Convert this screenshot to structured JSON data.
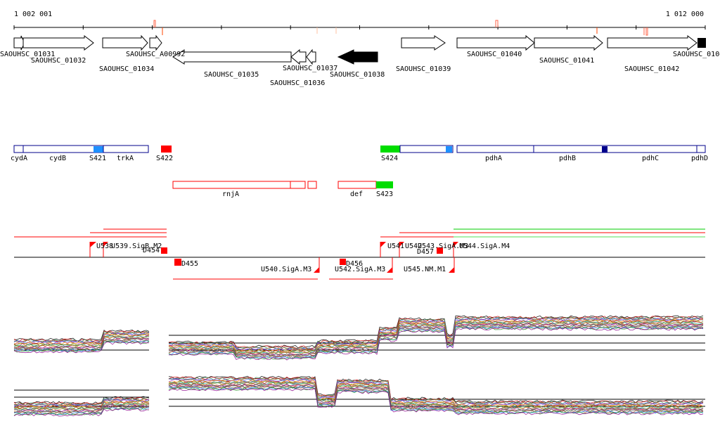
{
  "coordinates": {
    "start": "1 002 001",
    "end": "1 012 000"
  },
  "genes": [
    {
      "label": "SAOUHSC_01031",
      "strand": "+"
    },
    {
      "label": "SAOUHSC_01032",
      "strand": "+"
    },
    {
      "label": "SAOUHSC_01034",
      "strand": "+"
    },
    {
      "label": "SAOUHSC_A00992",
      "strand": "+"
    },
    {
      "label": "SAOUHSC_01035",
      "strand": "-"
    },
    {
      "label": "SAOUHSC_01037",
      "strand": "-"
    },
    {
      "label": "SAOUHSC_01036",
      "strand": "-"
    },
    {
      "label": "SAOUHSC_01038",
      "strand": "-",
      "highlighted": true
    },
    {
      "label": "SAOUHSC_01039",
      "strand": "+"
    },
    {
      "label": "SAOUHSC_01040",
      "strand": "+"
    },
    {
      "label": "SAOUHSC_01041",
      "strand": "+"
    },
    {
      "label": "SAOUHSC_01042",
      "strand": "+"
    },
    {
      "label": "SAOUHSC_0104",
      "strand": "+",
      "highlighted": true
    }
  ],
  "features_forward": [
    "cydA",
    "cydB",
    "S421",
    "trkA",
    "S422",
    "S424",
    "pdhA",
    "pdhB",
    "pdhC",
    "pdhD"
  ],
  "features_reverse": [
    "rnjA",
    "def",
    "S423"
  ],
  "regulatory_upper": [
    "U538",
    "U539.SigB.M2",
    "D454",
    "U541",
    "U542",
    "U543.SigA.M3",
    "D457",
    "U544.SigA.M4"
  ],
  "regulatory_lower": [
    "D455",
    "U540.SigA.M3",
    "D456",
    "U542.SigA.M3",
    "U545.NM.M1"
  ],
  "colors": {
    "gene_outline": "#000000",
    "feature_blue": "#00008b",
    "feature_red": "#ff0000",
    "feature_green": "#00ff00",
    "light_blue": "#1e90ff",
    "axis": "#000000"
  }
}
